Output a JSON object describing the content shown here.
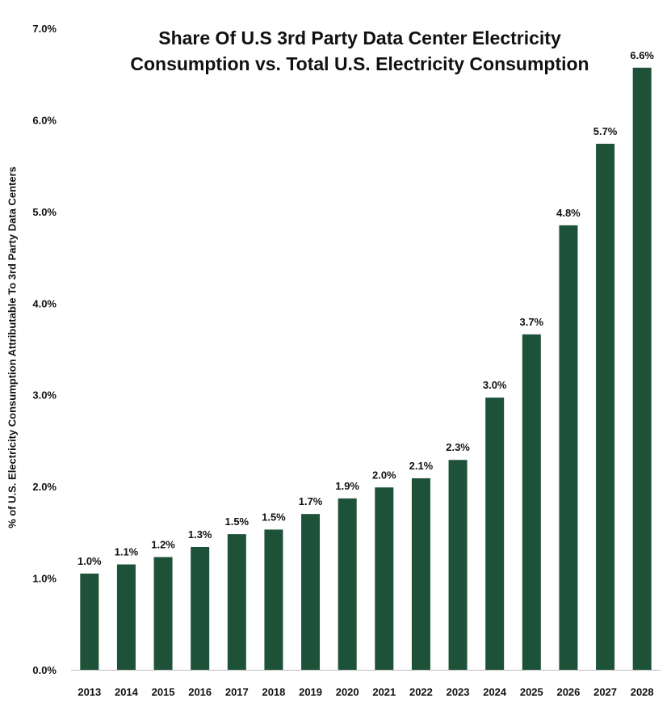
{
  "chart_data": {
    "type": "bar",
    "title_lines": [
      "Share Of U.S 3rd Party Data Center Electricity",
      "Consumption vs. Total U.S. Electricity Consumption"
    ],
    "xlabel": "",
    "ylabel": "% of U.S. Electricity Consumption Attributable To 3rd Party Data Centers",
    "categories": [
      "2013",
      "2014",
      "2015",
      "2016",
      "2017",
      "2018",
      "2019",
      "2020",
      "2021",
      "2022",
      "2023",
      "2024",
      "2025",
      "2026",
      "2027",
      "2028"
    ],
    "values": [
      1.05,
      1.15,
      1.23,
      1.34,
      1.48,
      1.53,
      1.7,
      1.87,
      1.99,
      2.09,
      2.29,
      2.97,
      3.66,
      4.85,
      5.74,
      6.57
    ],
    "data_labels": [
      "1.0%",
      "1.1%",
      "1.2%",
      "1.3%",
      "1.5%",
      "1.5%",
      "1.7%",
      "1.9%",
      "2.0%",
      "2.1%",
      "2.3%",
      "3.0%",
      "3.7%",
      "4.8%",
      "5.7%",
      "6.6%"
    ],
    "ylim": [
      0,
      7
    ],
    "yticks": [
      0,
      1,
      2,
      3,
      4,
      5,
      6,
      7
    ],
    "ytick_labels": [
      "0.0%",
      "1.0%",
      "2.0%",
      "3.0%",
      "4.0%",
      "5.0%",
      "6.0%",
      "7.0%"
    ],
    "grid": false,
    "bar_color": "#1d5238",
    "axis_color": "#bfbfbf"
  }
}
